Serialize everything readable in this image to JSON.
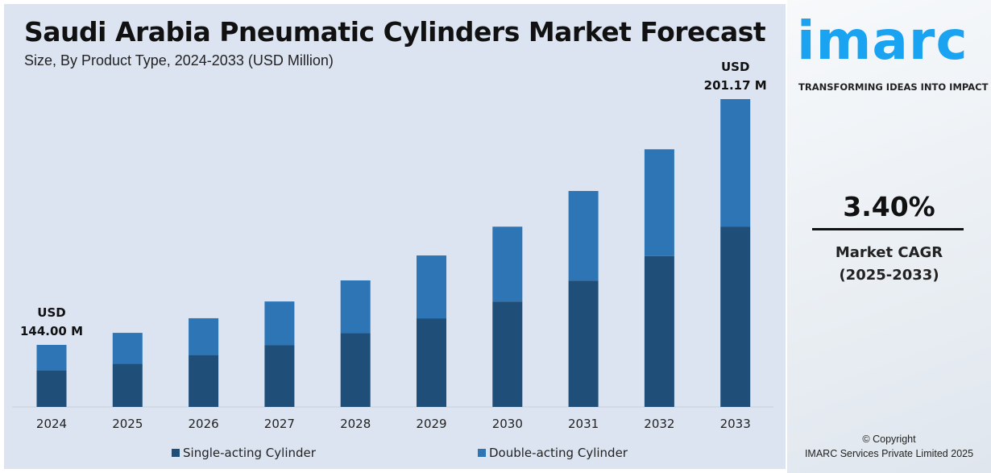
{
  "header": {
    "title": "Saudi Arabia Pneumatic Cylinders Market Forecast",
    "subtitle": "Size, By Product Type, 2024-2033 (USD Million)"
  },
  "chart_data": {
    "type": "bar",
    "stacked": true,
    "title": "Saudi Arabia Pneumatic Cylinders Market Forecast",
    "subtitle": "Size, By Product Type, 2024-2033 (USD Million)",
    "categories": [
      "2024",
      "2025",
      "2026",
      "2027",
      "2028",
      "2029",
      "2030",
      "2031",
      "2032",
      "2033"
    ],
    "series": [
      {
        "name": "Single-acting Cylinder",
        "color": "#1f4e79",
        "values": [
          84.2,
          85.9,
          87.9,
          90.1,
          93.0,
          96.4,
          100.3,
          105.2,
          110.9,
          117.7
        ]
      },
      {
        "name": "Double-acting Cylinder",
        "color": "#2e75b6",
        "values": [
          59.8,
          60.9,
          62.3,
          64.0,
          66.0,
          68.4,
          71.2,
          74.6,
          78.6,
          83.47
        ]
      }
    ],
    "annotations": [
      {
        "category": "2024",
        "line1": "USD",
        "line2": "144.00 M"
      },
      {
        "category": "2033",
        "line1": "USD",
        "line2": "201.17 M"
      }
    ],
    "grid": false,
    "legend": "bottom"
  },
  "legend": {
    "items": [
      "Single-acting Cylinder",
      "Double-acting Cylinder"
    ]
  },
  "side": {
    "logo": "imarc",
    "tagline": "TRANSFORMING IDEAS INTO IMPACT",
    "cagr_value": "3.40%",
    "cagr_label": "Market CAGR",
    "cagr_period": "(2025-2033)",
    "copyright": "© Copyright",
    "company": "IMARC Services Private Limited 2025"
  }
}
